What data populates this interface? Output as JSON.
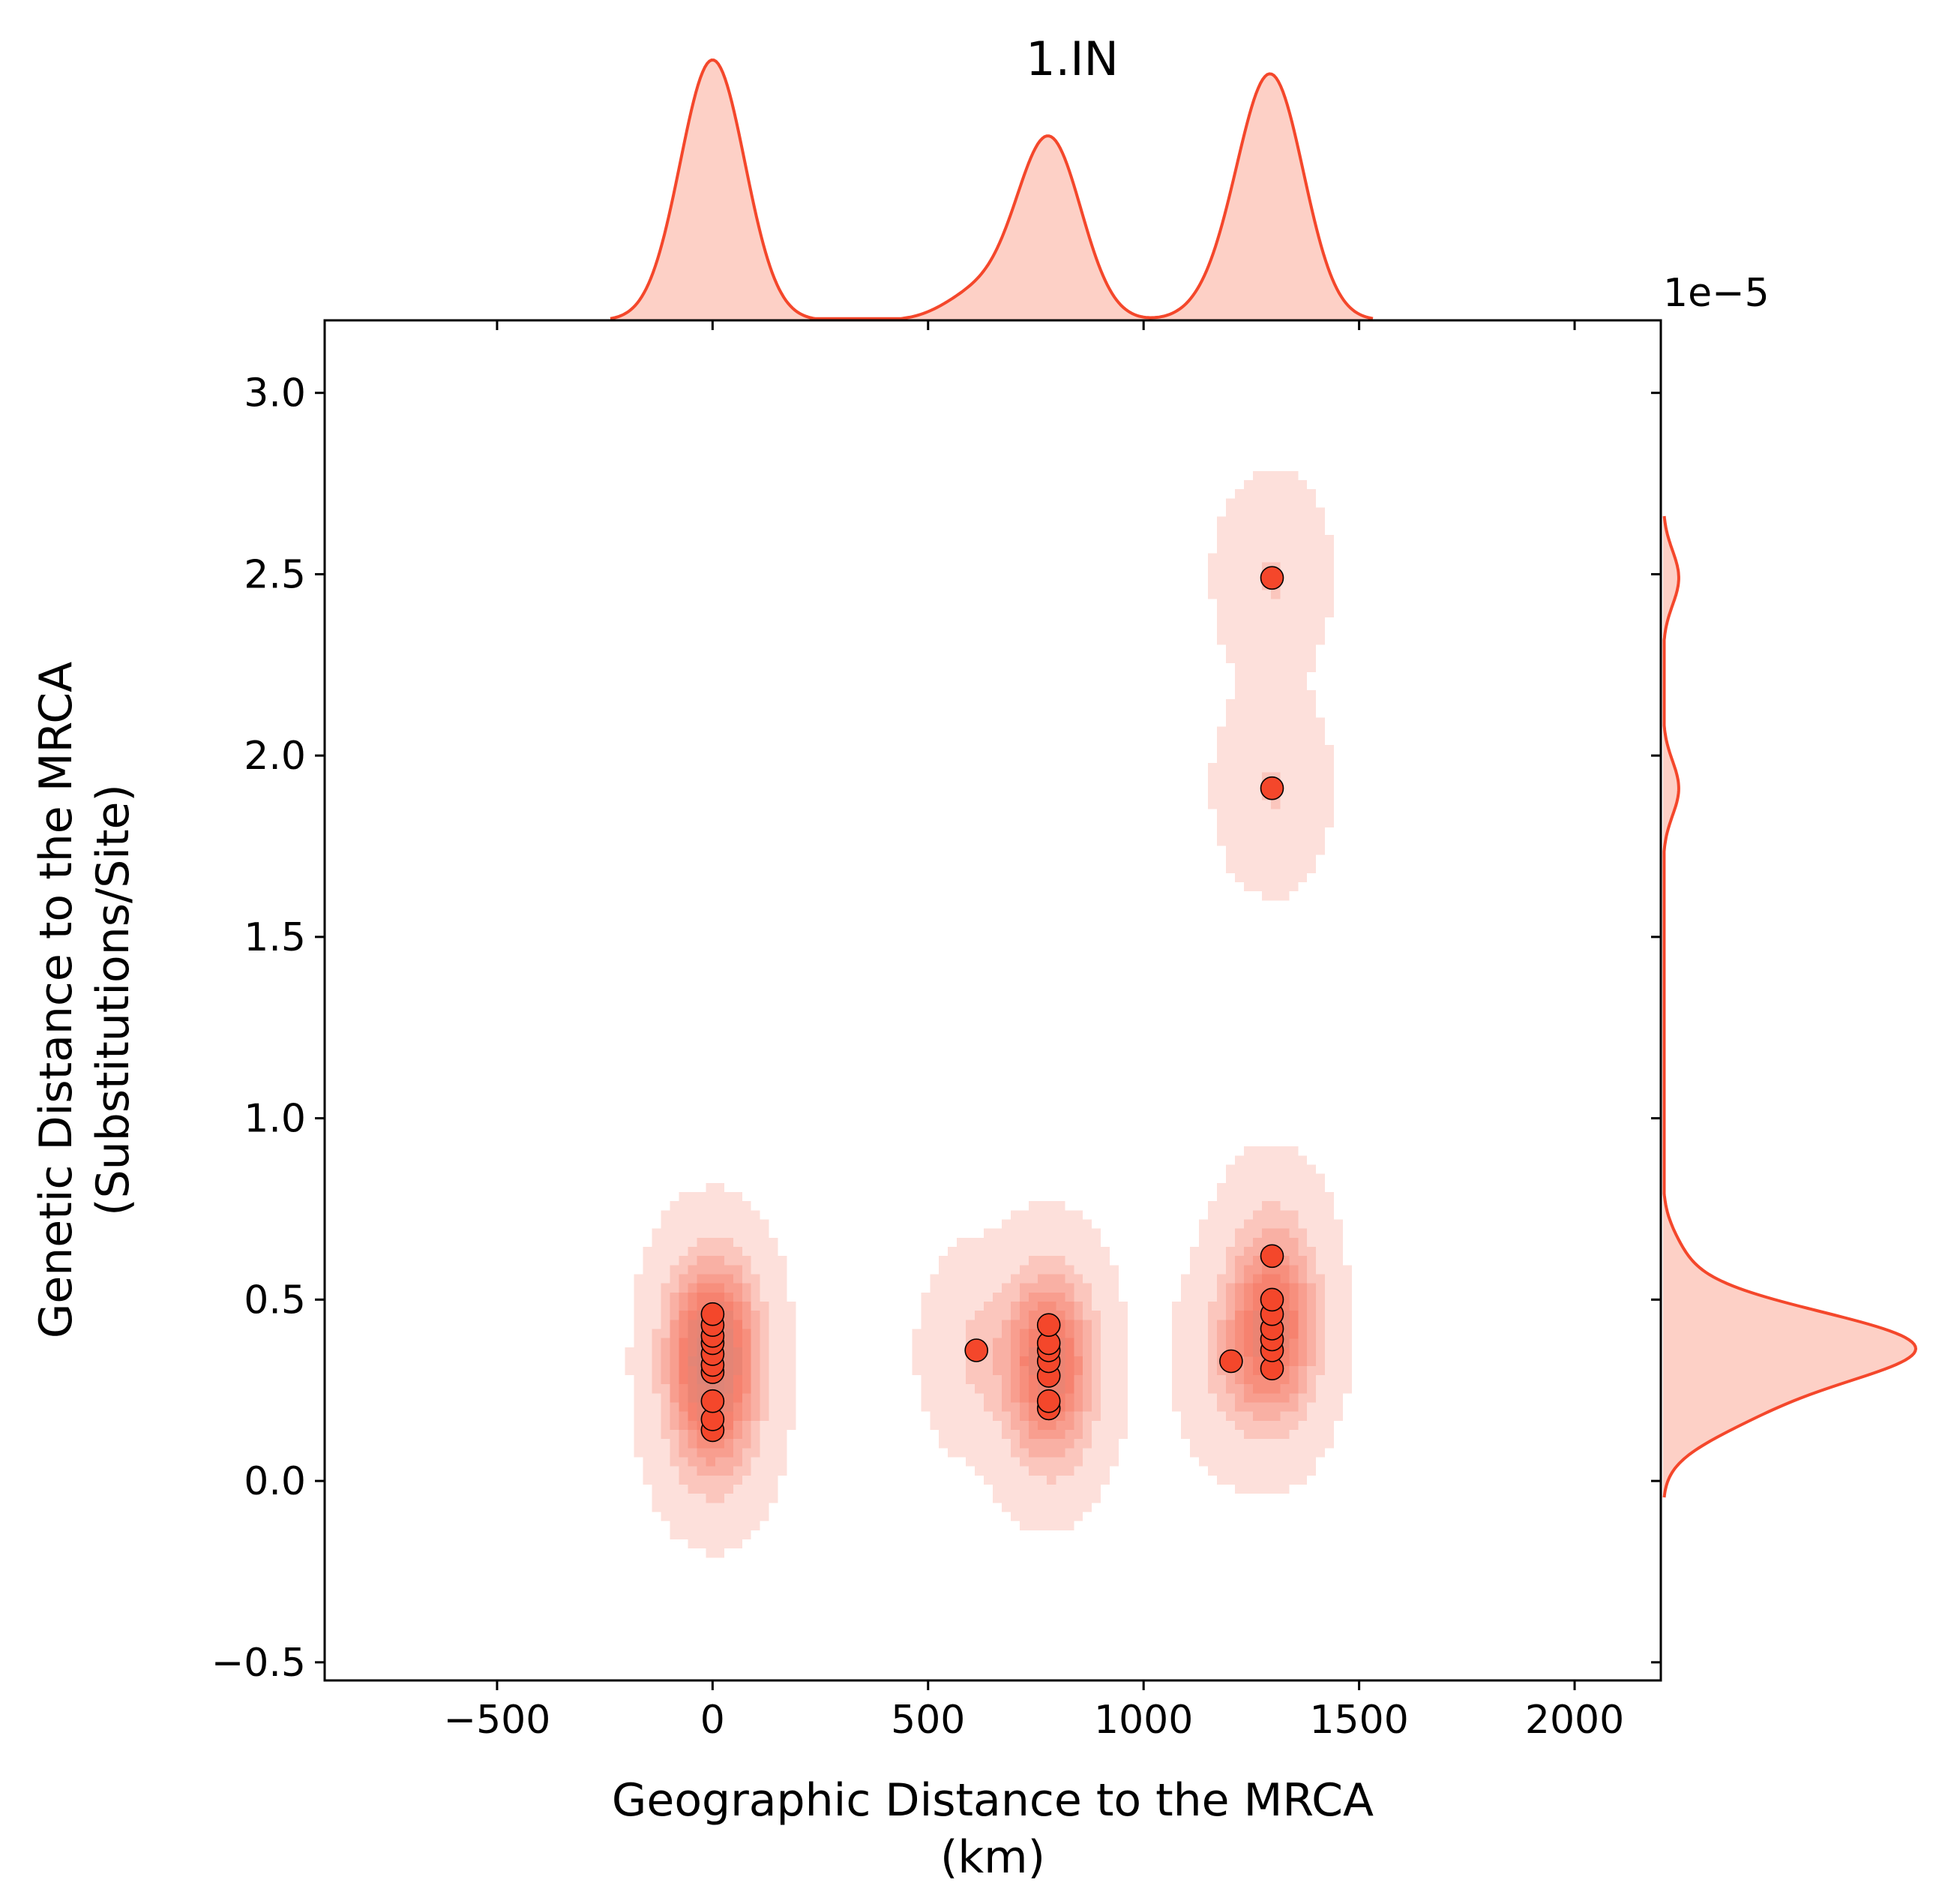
{
  "chart_data": {
    "type": "scatter",
    "title": "1.IN",
    "xlabel": [
      "Geographic Distance to the MRCA",
      "(km)"
    ],
    "ylabel": [
      "Genetic Distance to the MRCA",
      "(Substitutions/Site)"
    ],
    "y_offset_label": "1e−5",
    "xlim": [
      -900,
      2200
    ],
    "ylim": [
      -0.55,
      3.2
    ],
    "xticks": [
      -500,
      0,
      500,
      1000,
      1500,
      2000
    ],
    "xtick_labels": [
      "−500",
      "0",
      "500",
      "1000",
      "1500",
      "2000"
    ],
    "yticks": [
      -0.5,
      0.0,
      0.5,
      1.0,
      1.5,
      2.0,
      2.5,
      3.0
    ],
    "ytick_labels": [
      "−0.5",
      "0.0",
      "0.5",
      "1.0",
      "1.5",
      "2.0",
      "2.5",
      "3.0"
    ],
    "grid": false,
    "colors": {
      "point_fill": "#f4472b",
      "point_edge": "#000000",
      "kde_line": "#f4472b",
      "kde_fill": "#f9c6bb"
    },
    "points": [
      {
        "x": 0,
        "y": 0.14
      },
      {
        "x": 0,
        "y": 0.17
      },
      {
        "x": 0,
        "y": 0.22
      },
      {
        "x": 0,
        "y": 0.3
      },
      {
        "x": 0,
        "y": 0.32
      },
      {
        "x": 0,
        "y": 0.35
      },
      {
        "x": 0,
        "y": 0.38
      },
      {
        "x": 0,
        "y": 0.4
      },
      {
        "x": 0,
        "y": 0.43
      },
      {
        "x": 0,
        "y": 0.46
      },
      {
        "x": 612,
        "y": 0.36
      },
      {
        "x": 780,
        "y": 0.2
      },
      {
        "x": 780,
        "y": 0.22
      },
      {
        "x": 780,
        "y": 0.29
      },
      {
        "x": 780,
        "y": 0.33
      },
      {
        "x": 780,
        "y": 0.36
      },
      {
        "x": 780,
        "y": 0.38
      },
      {
        "x": 780,
        "y": 0.43
      },
      {
        "x": 1203,
        "y": 0.33
      },
      {
        "x": 1298,
        "y": 0.31
      },
      {
        "x": 1298,
        "y": 0.36
      },
      {
        "x": 1298,
        "y": 0.39
      },
      {
        "x": 1298,
        "y": 0.42
      },
      {
        "x": 1298,
        "y": 0.46
      },
      {
        "x": 1298,
        "y": 0.5
      },
      {
        "x": 1298,
        "y": 0.62
      },
      {
        "x": 1298,
        "y": 1.91
      },
      {
        "x": 1298,
        "y": 2.49
      }
    ],
    "kde_bandwidth": {
      "x": 65,
      "y": 0.14
    },
    "marginal_x": {
      "peaks_x": [
        0,
        780,
        1298
      ]
    },
    "marginal_y": {
      "peaks_y": [
        0.37,
        1.91,
        2.49
      ]
    }
  }
}
